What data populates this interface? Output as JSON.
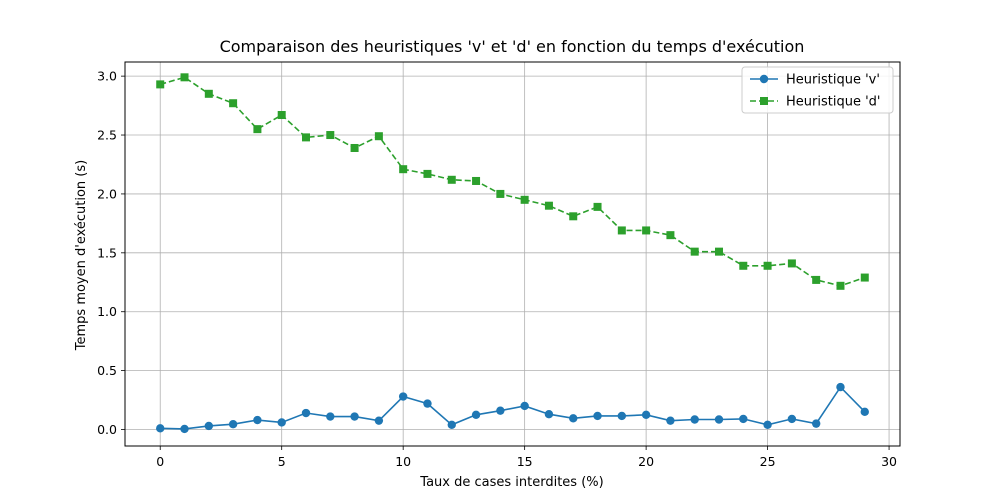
{
  "chart_data": {
    "type": "line",
    "title": "Comparaison des heuristiques 'v' et 'd' en fonction du temps d'exécution",
    "xlabel": "Taux de cases interdites (%)",
    "ylabel": "Temps moyen d'exécution (s)",
    "xlim": [
      -1.45,
      30.45
    ],
    "ylim": [
      -0.14,
      3.12
    ],
    "xticks": [
      0,
      5,
      10,
      15,
      20,
      25,
      30
    ],
    "yticks": [
      0.0,
      0.5,
      1.0,
      1.5,
      2.0,
      2.5,
      3.0
    ],
    "xtick_labels": [
      "0",
      "5",
      "10",
      "15",
      "20",
      "25",
      "30"
    ],
    "ytick_labels": [
      "0.0",
      "0.5",
      "1.0",
      "1.5",
      "2.0",
      "2.5",
      "3.0"
    ],
    "grid": true,
    "legend_position": "top-right",
    "x": [
      0,
      1,
      2,
      3,
      4,
      5,
      6,
      7,
      8,
      9,
      10,
      11,
      12,
      13,
      14,
      15,
      16,
      17,
      18,
      19,
      20,
      21,
      22,
      23,
      24,
      25,
      26,
      27,
      28,
      29
    ],
    "series": [
      {
        "name": "Heuristique 'v'",
        "color": "#1f77b4",
        "marker": "circle",
        "linestyle": "solid",
        "values": [
          0.01,
          0.005,
          0.03,
          0.045,
          0.08,
          0.06,
          0.14,
          0.11,
          0.11,
          0.075,
          0.28,
          0.22,
          0.04,
          0.125,
          0.16,
          0.2,
          0.13,
          0.095,
          0.115,
          0.115,
          0.125,
          0.075,
          0.085,
          0.085,
          0.09,
          0.04,
          0.09,
          0.05,
          0.36,
          0.15
        ]
      },
      {
        "name": "Heuristique 'd'",
        "color": "#2ca02c",
        "marker": "square",
        "linestyle": "dashed",
        "values": [
          2.93,
          2.99,
          2.85,
          2.77,
          2.55,
          2.67,
          2.48,
          2.5,
          2.39,
          2.49,
          2.21,
          2.17,
          2.12,
          2.11,
          2.0,
          1.95,
          1.9,
          1.81,
          1.89,
          1.69,
          1.69,
          1.65,
          1.51,
          1.51,
          1.39,
          1.39,
          1.41,
          1.27,
          1.22,
          1.29
        ]
      }
    ]
  }
}
